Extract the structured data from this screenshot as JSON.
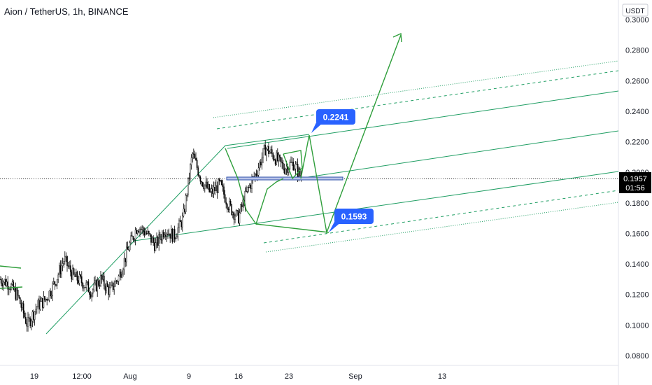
{
  "header": {
    "title": "Aion / TetherUS, 1h, BINANCE"
  },
  "axis": {
    "currency": "USDT",
    "price_ticks": [
      "0.3000",
      "0.2800",
      "0.2600",
      "0.2400",
      "0.2200",
      "0.2000",
      "0.1800",
      "0.1600",
      "0.1400",
      "0.1200",
      "0.1000",
      "0.0800"
    ],
    "time_ticks": [
      "19",
      "12:00",
      "Aug",
      "9",
      "16",
      "23",
      "Sep",
      "13"
    ]
  },
  "current_price": {
    "value": "0.1957",
    "countdown": "01:56"
  },
  "annotations": [
    {
      "label": "0.2241"
    },
    {
      "label": "0.1593"
    }
  ],
  "colors": {
    "candle": "#000000",
    "drawing_green": "#2e9e3a",
    "channel_green": "#1f9e63",
    "label_bg": "#2962ff",
    "support_blue": "#2f4fa8",
    "axis_text": "#131722"
  },
  "chart_data": {
    "type": "candlestick",
    "symbol": "Aion / TetherUS",
    "interval": "1h",
    "exchange": "BINANCE",
    "ylim": [
      0.07,
      0.31
    ],
    "price_series_approx": [
      [
        "Jul 15",
        0.13
      ],
      [
        "Jul 17",
        0.127
      ],
      [
        "Jul 18",
        0.118
      ],
      [
        "Jul 19",
        0.1
      ],
      [
        "Jul 20",
        0.112
      ],
      [
        "Jul 21",
        0.117
      ],
      [
        "Jul 22",
        0.128
      ],
      [
        "Jul 23",
        0.143
      ],
      [
        "Jul 24",
        0.132
      ],
      [
        "Jul 26",
        0.128
      ],
      [
        "Jul 28",
        0.122
      ],
      [
        "Jul 30",
        0.13
      ],
      [
        "Aug 1",
        0.122
      ],
      [
        "Aug 3",
        0.132
      ],
      [
        "Aug 5",
        0.15
      ],
      [
        "Aug 6",
        0.165
      ],
      [
        "Aug 7",
        0.16
      ],
      [
        "Aug 8",
        0.152
      ],
      [
        "Aug 10",
        0.163
      ],
      [
        "Aug 11",
        0.158
      ],
      [
        "Aug 12",
        0.17
      ],
      [
        "Aug 13",
        0.212
      ],
      [
        "Aug 14",
        0.195
      ],
      [
        "Aug 15",
        0.186
      ],
      [
        "Aug 16",
        0.192
      ],
      [
        "Aug 17",
        0.178
      ],
      [
        "Aug 18",
        0.17
      ],
      [
        "Aug 19",
        0.188
      ],
      [
        "Aug 20",
        0.2
      ],
      [
        "Aug 21",
        0.216
      ],
      [
        "Aug 22",
        0.21
      ],
      [
        "Aug 23",
        0.203
      ],
      [
        "Aug 24",
        0.206
      ],
      [
        "Aug 25",
        0.1957
      ]
    ],
    "last_price": 0.1957,
    "targets": [
      0.2241,
      0.1593
    ]
  }
}
